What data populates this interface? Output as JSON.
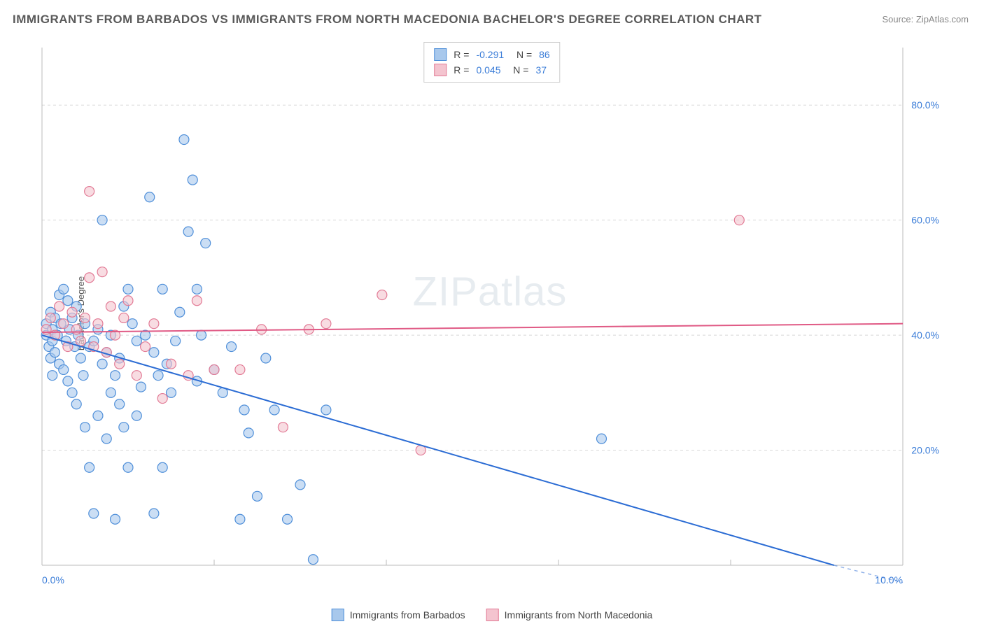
{
  "title": "IMMIGRANTS FROM BARBADOS VS IMMIGRANTS FROM NORTH MACEDONIA BACHELOR'S DEGREE CORRELATION CHART",
  "source": "Source: ZipAtlas.com",
  "watermark": "ZIPatlas",
  "ylabel": "Bachelor's Degree",
  "chart": {
    "type": "scatter",
    "xlim": [
      0,
      10
    ],
    "ylim": [
      0,
      90
    ],
    "xtick_labels": [
      "0.0%",
      "10.0%"
    ],
    "xtick_positions": [
      0,
      10
    ],
    "xtick_minor": [
      2,
      4,
      6,
      8
    ],
    "ytick_labels": [
      "20.0%",
      "40.0%",
      "60.0%",
      "80.0%"
    ],
    "ytick_positions": [
      20,
      40,
      60,
      80
    ],
    "grid_color": "#d8d8d8",
    "axis_color": "#bbbbbb",
    "background_color": "#ffffff",
    "series": [
      {
        "name": "Immigrants from Barbados",
        "color_fill": "#a8c8ec",
        "color_stroke": "#4f8fd9",
        "r_value": "-0.291",
        "n_value": "86",
        "marker_radius": 7,
        "trend": {
          "x1": 0,
          "y1": 40,
          "x2": 9.2,
          "y2": 0,
          "color": "#2b6cd4",
          "width": 2
        },
        "points": [
          [
            0.05,
            40
          ],
          [
            0.05,
            42
          ],
          [
            0.08,
            38
          ],
          [
            0.1,
            44
          ],
          [
            0.1,
            36
          ],
          [
            0.12,
            41
          ],
          [
            0.12,
            39
          ],
          [
            0.15,
            43
          ],
          [
            0.15,
            37
          ],
          [
            0.18,
            40
          ],
          [
            0.2,
            47
          ],
          [
            0.2,
            35
          ],
          [
            0.22,
            42
          ],
          [
            0.25,
            48
          ],
          [
            0.25,
            34
          ],
          [
            0.28,
            39
          ],
          [
            0.3,
            46
          ],
          [
            0.3,
            32
          ],
          [
            0.32,
            41
          ],
          [
            0.35,
            43
          ],
          [
            0.35,
            30
          ],
          [
            0.38,
            38
          ],
          [
            0.4,
            45
          ],
          [
            0.4,
            28
          ],
          [
            0.42,
            40
          ],
          [
            0.45,
            36
          ],
          [
            0.48,
            33
          ],
          [
            0.5,
            42
          ],
          [
            0.5,
            24
          ],
          [
            0.55,
            38
          ],
          [
            0.55,
            17
          ],
          [
            0.6,
            39
          ],
          [
            0.6,
            9
          ],
          [
            0.65,
            41
          ],
          [
            0.65,
            26
          ],
          [
            0.7,
            35
          ],
          [
            0.7,
            60
          ],
          [
            0.75,
            37
          ],
          [
            0.75,
            22
          ],
          [
            0.8,
            40
          ],
          [
            0.8,
            30
          ],
          [
            0.85,
            33
          ],
          [
            0.85,
            8
          ],
          [
            0.9,
            36
          ],
          [
            0.9,
            28
          ],
          [
            0.95,
            45
          ],
          [
            0.95,
            24
          ],
          [
            1.0,
            48
          ],
          [
            1.0,
            17
          ],
          [
            1.05,
            42
          ],
          [
            1.1,
            39
          ],
          [
            1.1,
            26
          ],
          [
            1.15,
            31
          ],
          [
            1.2,
            40
          ],
          [
            1.25,
            64
          ],
          [
            1.3,
            37
          ],
          [
            1.3,
            9
          ],
          [
            1.35,
            33
          ],
          [
            1.4,
            48
          ],
          [
            1.4,
            17
          ],
          [
            1.45,
            35
          ],
          [
            1.5,
            30
          ],
          [
            1.55,
            39
          ],
          [
            1.6,
            44
          ],
          [
            1.65,
            74
          ],
          [
            1.7,
            58
          ],
          [
            1.75,
            67
          ],
          [
            1.8,
            32
          ],
          [
            1.8,
            48
          ],
          [
            1.85,
            40
          ],
          [
            1.9,
            56
          ],
          [
            2.0,
            34
          ],
          [
            2.1,
            30
          ],
          [
            2.2,
            38
          ],
          [
            2.3,
            8
          ],
          [
            2.35,
            27
          ],
          [
            2.4,
            23
          ],
          [
            2.5,
            12
          ],
          [
            2.6,
            36
          ],
          [
            2.7,
            27
          ],
          [
            2.85,
            8
          ],
          [
            3.0,
            14
          ],
          [
            3.15,
            1
          ],
          [
            3.3,
            27
          ],
          [
            6.5,
            22
          ],
          [
            0.12,
            33
          ]
        ]
      },
      {
        "name": "Immigrants from North Macedonia",
        "color_fill": "#f4c4cf",
        "color_stroke": "#e27a95",
        "r_value": "0.045",
        "n_value": "37",
        "marker_radius": 7,
        "trend": {
          "x1": 0,
          "y1": 40.5,
          "x2": 10,
          "y2": 42,
          "color": "#e05a85",
          "width": 2
        },
        "points": [
          [
            0.05,
            41
          ],
          [
            0.1,
            43
          ],
          [
            0.15,
            40
          ],
          [
            0.2,
            45
          ],
          [
            0.25,
            42
          ],
          [
            0.3,
            38
          ],
          [
            0.35,
            44
          ],
          [
            0.4,
            41
          ],
          [
            0.45,
            39
          ],
          [
            0.5,
            43
          ],
          [
            0.55,
            50
          ],
          [
            0.55,
            65
          ],
          [
            0.6,
            38
          ],
          [
            0.65,
            42
          ],
          [
            0.7,
            51
          ],
          [
            0.75,
            37
          ],
          [
            0.8,
            45
          ],
          [
            0.85,
            40
          ],
          [
            0.9,
            35
          ],
          [
            0.95,
            43
          ],
          [
            1.0,
            46
          ],
          [
            1.1,
            33
          ],
          [
            1.2,
            38
          ],
          [
            1.3,
            42
          ],
          [
            1.4,
            29
          ],
          [
            1.5,
            35
          ],
          [
            1.7,
            33
          ],
          [
            1.8,
            46
          ],
          [
            2.0,
            34
          ],
          [
            2.3,
            34
          ],
          [
            2.55,
            41
          ],
          [
            2.8,
            24
          ],
          [
            3.1,
            41
          ],
          [
            3.3,
            42
          ],
          [
            3.95,
            47
          ],
          [
            4.4,
            20
          ],
          [
            8.1,
            60
          ]
        ]
      }
    ]
  },
  "legend_bottom": [
    {
      "label": "Immigrants from Barbados",
      "fill": "#a8c8ec",
      "stroke": "#4f8fd9"
    },
    {
      "label": "Immigrants from North Macedonia",
      "fill": "#f4c4cf",
      "stroke": "#e27a95"
    }
  ]
}
